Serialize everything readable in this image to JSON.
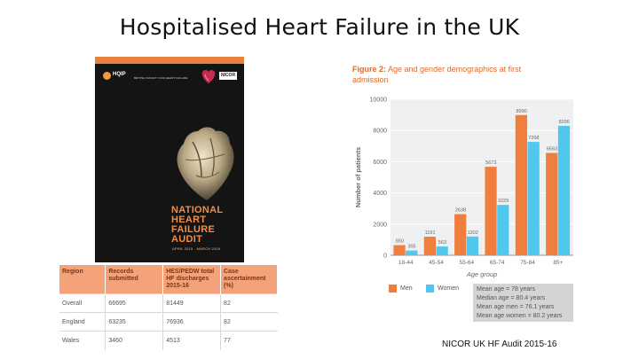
{
  "slide": {
    "title": "Hospitalised Heart Failure in the UK",
    "source": "NICOR UK HF Audit 2015-16"
  },
  "cover": {
    "hqip_label": "HQIP",
    "society_label": "BRITISH SOCIETY FOR HEART FAILURE",
    "nicor_label": "NICOR",
    "title_lines": [
      "NATIONAL",
      "HEART",
      "FAILURE",
      "AUDIT"
    ],
    "date": "APRIL 2015 - MARCH 2016",
    "band_color": "#e8803e",
    "title_color": "#f08c46"
  },
  "region_table": {
    "headers": [
      "Region",
      "Records submitted",
      "HES/PEDW total HF discharges 2015-16",
      "Case ascertainment (%)"
    ],
    "rows": [
      [
        "Overall",
        "66695",
        "81449",
        "82"
      ],
      [
        "England",
        "63235",
        "76936",
        "82"
      ],
      [
        "Wales",
        "3460",
        "4513",
        "77"
      ]
    ]
  },
  "figure": {
    "title_bold": "Figure 2:",
    "title_rest": " Age and gender demographics at first admission"
  },
  "chart_data": {
    "type": "bar",
    "categories": [
      "18-44",
      "45-54",
      "55-64",
      "65-74",
      "75-84",
      "85+"
    ],
    "series": [
      {
        "name": "Men",
        "color": "#f07e3e",
        "values": [
          650,
          1191,
          2638,
          5673,
          8990,
          6563
        ]
      },
      {
        "name": "Women",
        "color": "#50c8ee",
        "values": [
          305,
          563,
          1202,
          3229,
          7268,
          8296
        ]
      }
    ],
    "data_labels": {
      "Men": [
        "650",
        "1191",
        "2638",
        "5673",
        "8990",
        "6563"
      ],
      "Women": [
        "305",
        "563",
        "1202",
        "3229",
        "7268",
        "8296"
      ]
    },
    "xlabel": "Age group",
    "ylabel": "Number of patients",
    "ylim": [
      0,
      10000
    ],
    "yticks": [
      0,
      2000,
      4000,
      6000,
      8000,
      10000
    ],
    "ytick_labels": [
      "0",
      "2000",
      "4000",
      "6000",
      "8000",
      "10000"
    ],
    "grid": true,
    "legend": "bottom-left"
  },
  "stats": [
    "Mean age = 78 years",
    "Median age = 80.4 years",
    "Mean age men = 76.1 years",
    "Mean age women = 80.2 years"
  ]
}
